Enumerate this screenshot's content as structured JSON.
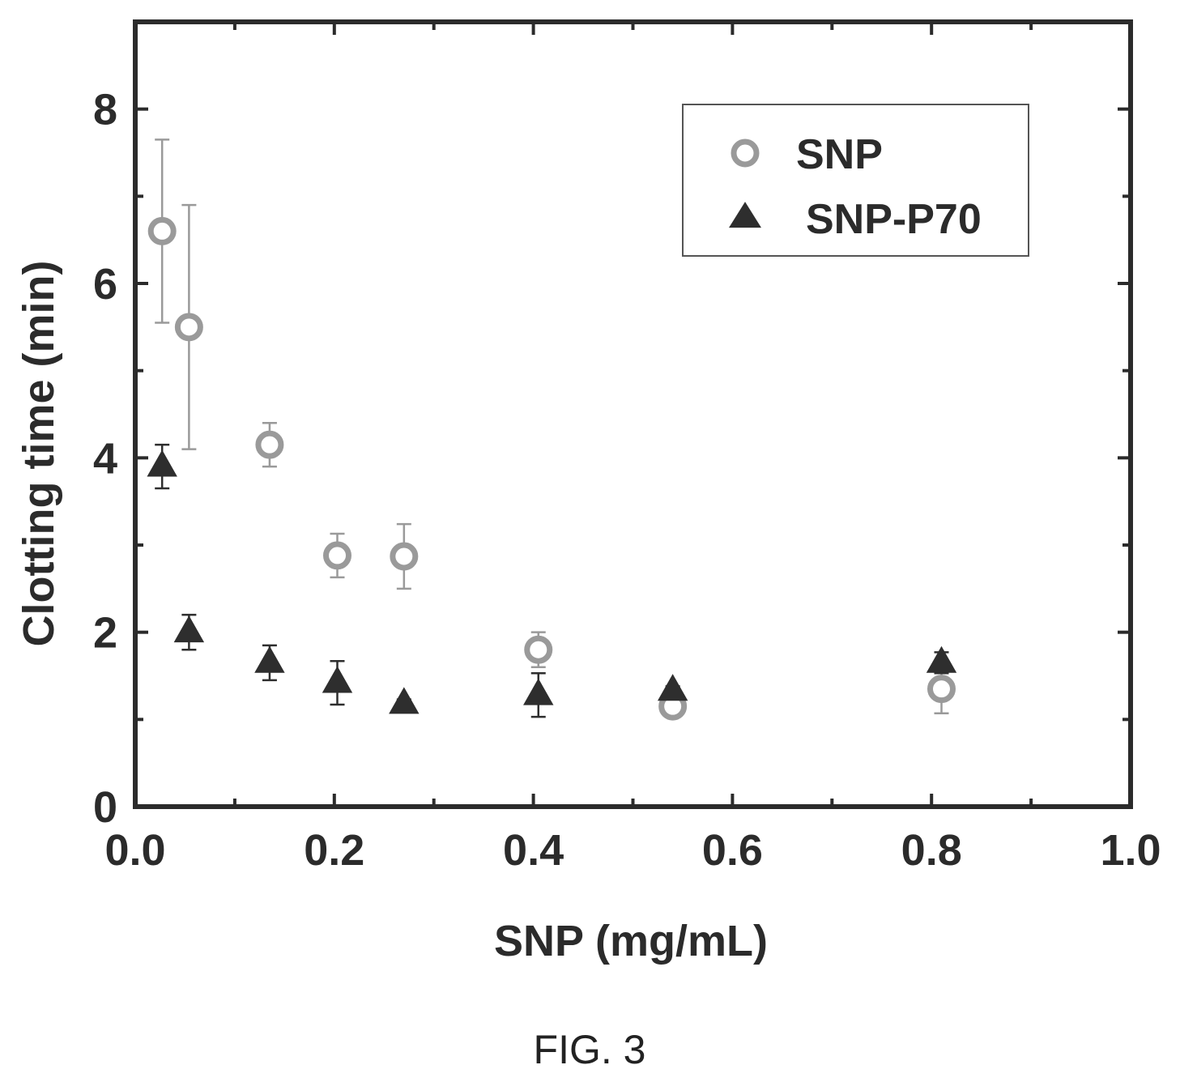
{
  "chart_data": {
    "type": "scatter",
    "xlabel": "SNP (mg/mL)",
    "ylabel": "Clotting time (min)",
    "xlim": [
      0.0,
      1.0
    ],
    "ylim": [
      0,
      9
    ],
    "x_ticks": [
      0.0,
      0.2,
      0.4,
      0.6,
      0.8,
      1.0
    ],
    "x_tick_labels": [
      "0.0",
      "0.2",
      "0.4",
      "0.6",
      "0.8",
      "1.0"
    ],
    "y_ticks": [
      0,
      2,
      4,
      6,
      8
    ],
    "y_tick_labels": [
      "0",
      "2",
      "4",
      "6",
      "8"
    ],
    "legend_position": "top-right",
    "grid": false,
    "series": [
      {
        "name": "SNP",
        "marker": "open-circle",
        "color": "#9a9a9a",
        "points": [
          {
            "x": 0.027,
            "y": 6.6,
            "err": 1.05
          },
          {
            "x": 0.054,
            "y": 5.5,
            "err": 1.4
          },
          {
            "x": 0.135,
            "y": 4.15,
            "err": 0.25
          },
          {
            "x": 0.203,
            "y": 2.88,
            "err": 0.25
          },
          {
            "x": 0.27,
            "y": 2.87,
            "err": 0.37
          },
          {
            "x": 0.405,
            "y": 1.8,
            "err": 0.2
          },
          {
            "x": 0.54,
            "y": 1.15,
            "err": 0.05
          },
          {
            "x": 0.81,
            "y": 1.35,
            "err": 0.28
          }
        ]
      },
      {
        "name": "SNP-P70",
        "marker": "filled-triangle",
        "color": "#2e2e2e",
        "points": [
          {
            "x": 0.027,
            "y": 3.9,
            "err": 0.25
          },
          {
            "x": 0.054,
            "y": 2.0,
            "err": 0.2
          },
          {
            "x": 0.135,
            "y": 1.65,
            "err": 0.2
          },
          {
            "x": 0.203,
            "y": 1.42,
            "err": 0.25
          },
          {
            "x": 0.27,
            "y": 1.18,
            "err": 0.05
          },
          {
            "x": 0.405,
            "y": 1.28,
            "err": 0.25
          },
          {
            "x": 0.54,
            "y": 1.33,
            "err": 0.05
          },
          {
            "x": 0.81,
            "y": 1.65,
            "err": 0.12
          }
        ]
      }
    ]
  },
  "caption": "FIG. 3"
}
